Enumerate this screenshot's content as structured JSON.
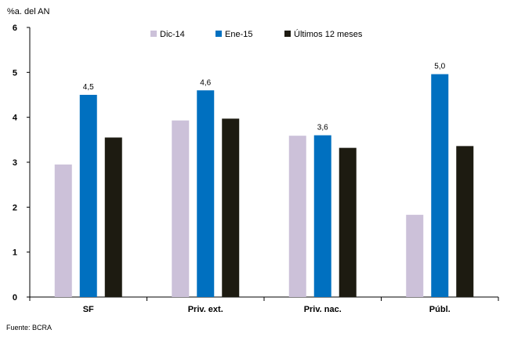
{
  "chart_data": {
    "type": "bar",
    "title": "",
    "ylabel": "%a. del AN",
    "xlabel": "",
    "ylim": [
      0,
      6
    ],
    "yticks": [
      "0",
      "1",
      "2",
      "3",
      "4",
      "5",
      "6"
    ],
    "categories": [
      "SF",
      "Priv. ext.",
      "Priv. nac.",
      "Públ."
    ],
    "series": [
      {
        "name": "Dic-14",
        "color": "#ccc1d9",
        "values": [
          2.95,
          3.93,
          3.59,
          1.83
        ]
      },
      {
        "name": "Ene-15",
        "color": "#0070c0",
        "values": [
          4.5,
          4.6,
          3.6,
          4.96
        ]
      },
      {
        "name": "Últimos 12 meses",
        "color": "#1d1b11",
        "values": [
          3.55,
          3.97,
          3.32,
          3.36
        ]
      }
    ],
    "data_labels": [
      {
        "series": 1,
        "category": 0,
        "text": "4,5"
      },
      {
        "series": 1,
        "category": 1,
        "text": "4,6"
      },
      {
        "series": 1,
        "category": 2,
        "text": "3,6"
      },
      {
        "series": 1,
        "category": 3,
        "text": "5,0"
      }
    ],
    "legend_position": "top",
    "grid": false
  },
  "footer": {
    "source": "Fuente: BCRA"
  }
}
